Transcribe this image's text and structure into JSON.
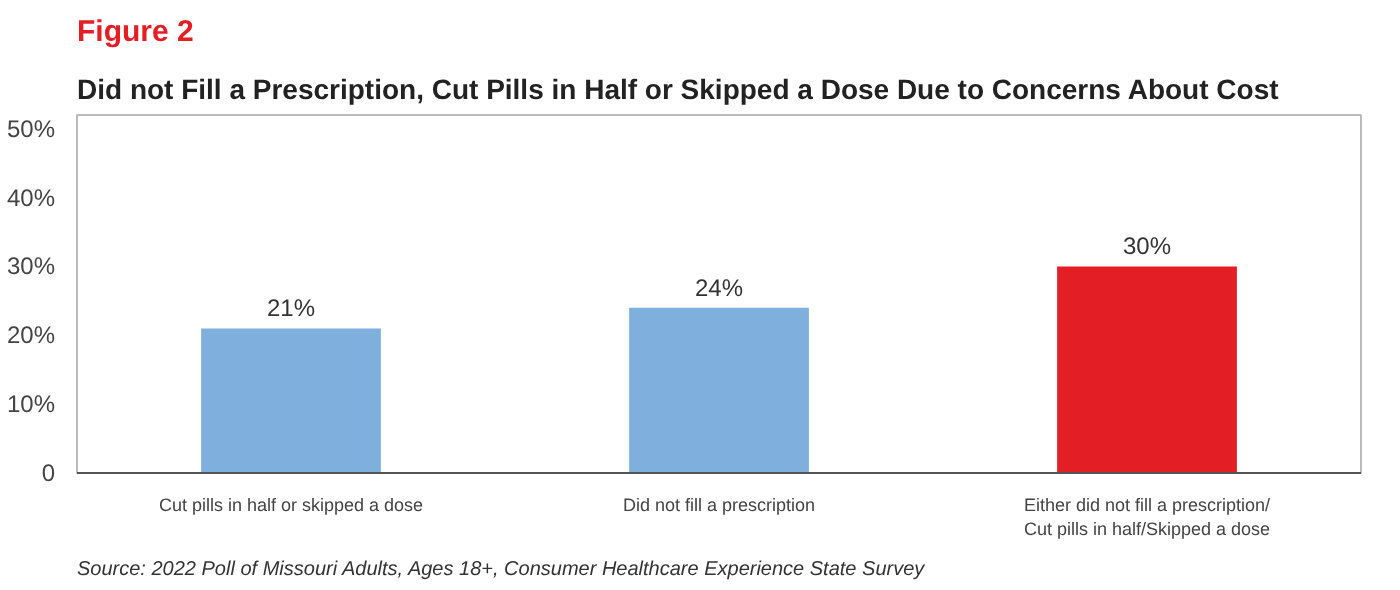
{
  "chart_data": {
    "type": "bar",
    "title": "Figure 2",
    "subtitle": "Did not Fill a Prescription, Cut Pills in Half or Skipped a Dose Due to Concerns About Cost",
    "categories": [
      "Cut pills in half or skipped a dose",
      "Did not fill a prescription",
      "Either did not fill a prescription/ Cut pills in half/Skipped a dose"
    ],
    "values": [
      21,
      24,
      30
    ],
    "colors": [
      "#7fb0dd",
      "#7fb0dd",
      "#e31e24"
    ],
    "ylim": [
      0,
      52
    ],
    "yticks": [
      {
        "value": 0,
        "label": "0"
      },
      {
        "value": 10,
        "label": "10%"
      },
      {
        "value": 20,
        "label": "20%"
      },
      {
        "value": 30,
        "label": "30%"
      },
      {
        "value": 40,
        "label": "40%"
      },
      {
        "value": 50,
        "label": "50%"
      }
    ],
    "value_labels": [
      "21%",
      "24%",
      "30%"
    ],
    "grid": false,
    "annotations": [
      "Source: 2022 Poll of Missouri Adults, Ages 18+, Consumer Healthcare Experience State Survey"
    ]
  }
}
